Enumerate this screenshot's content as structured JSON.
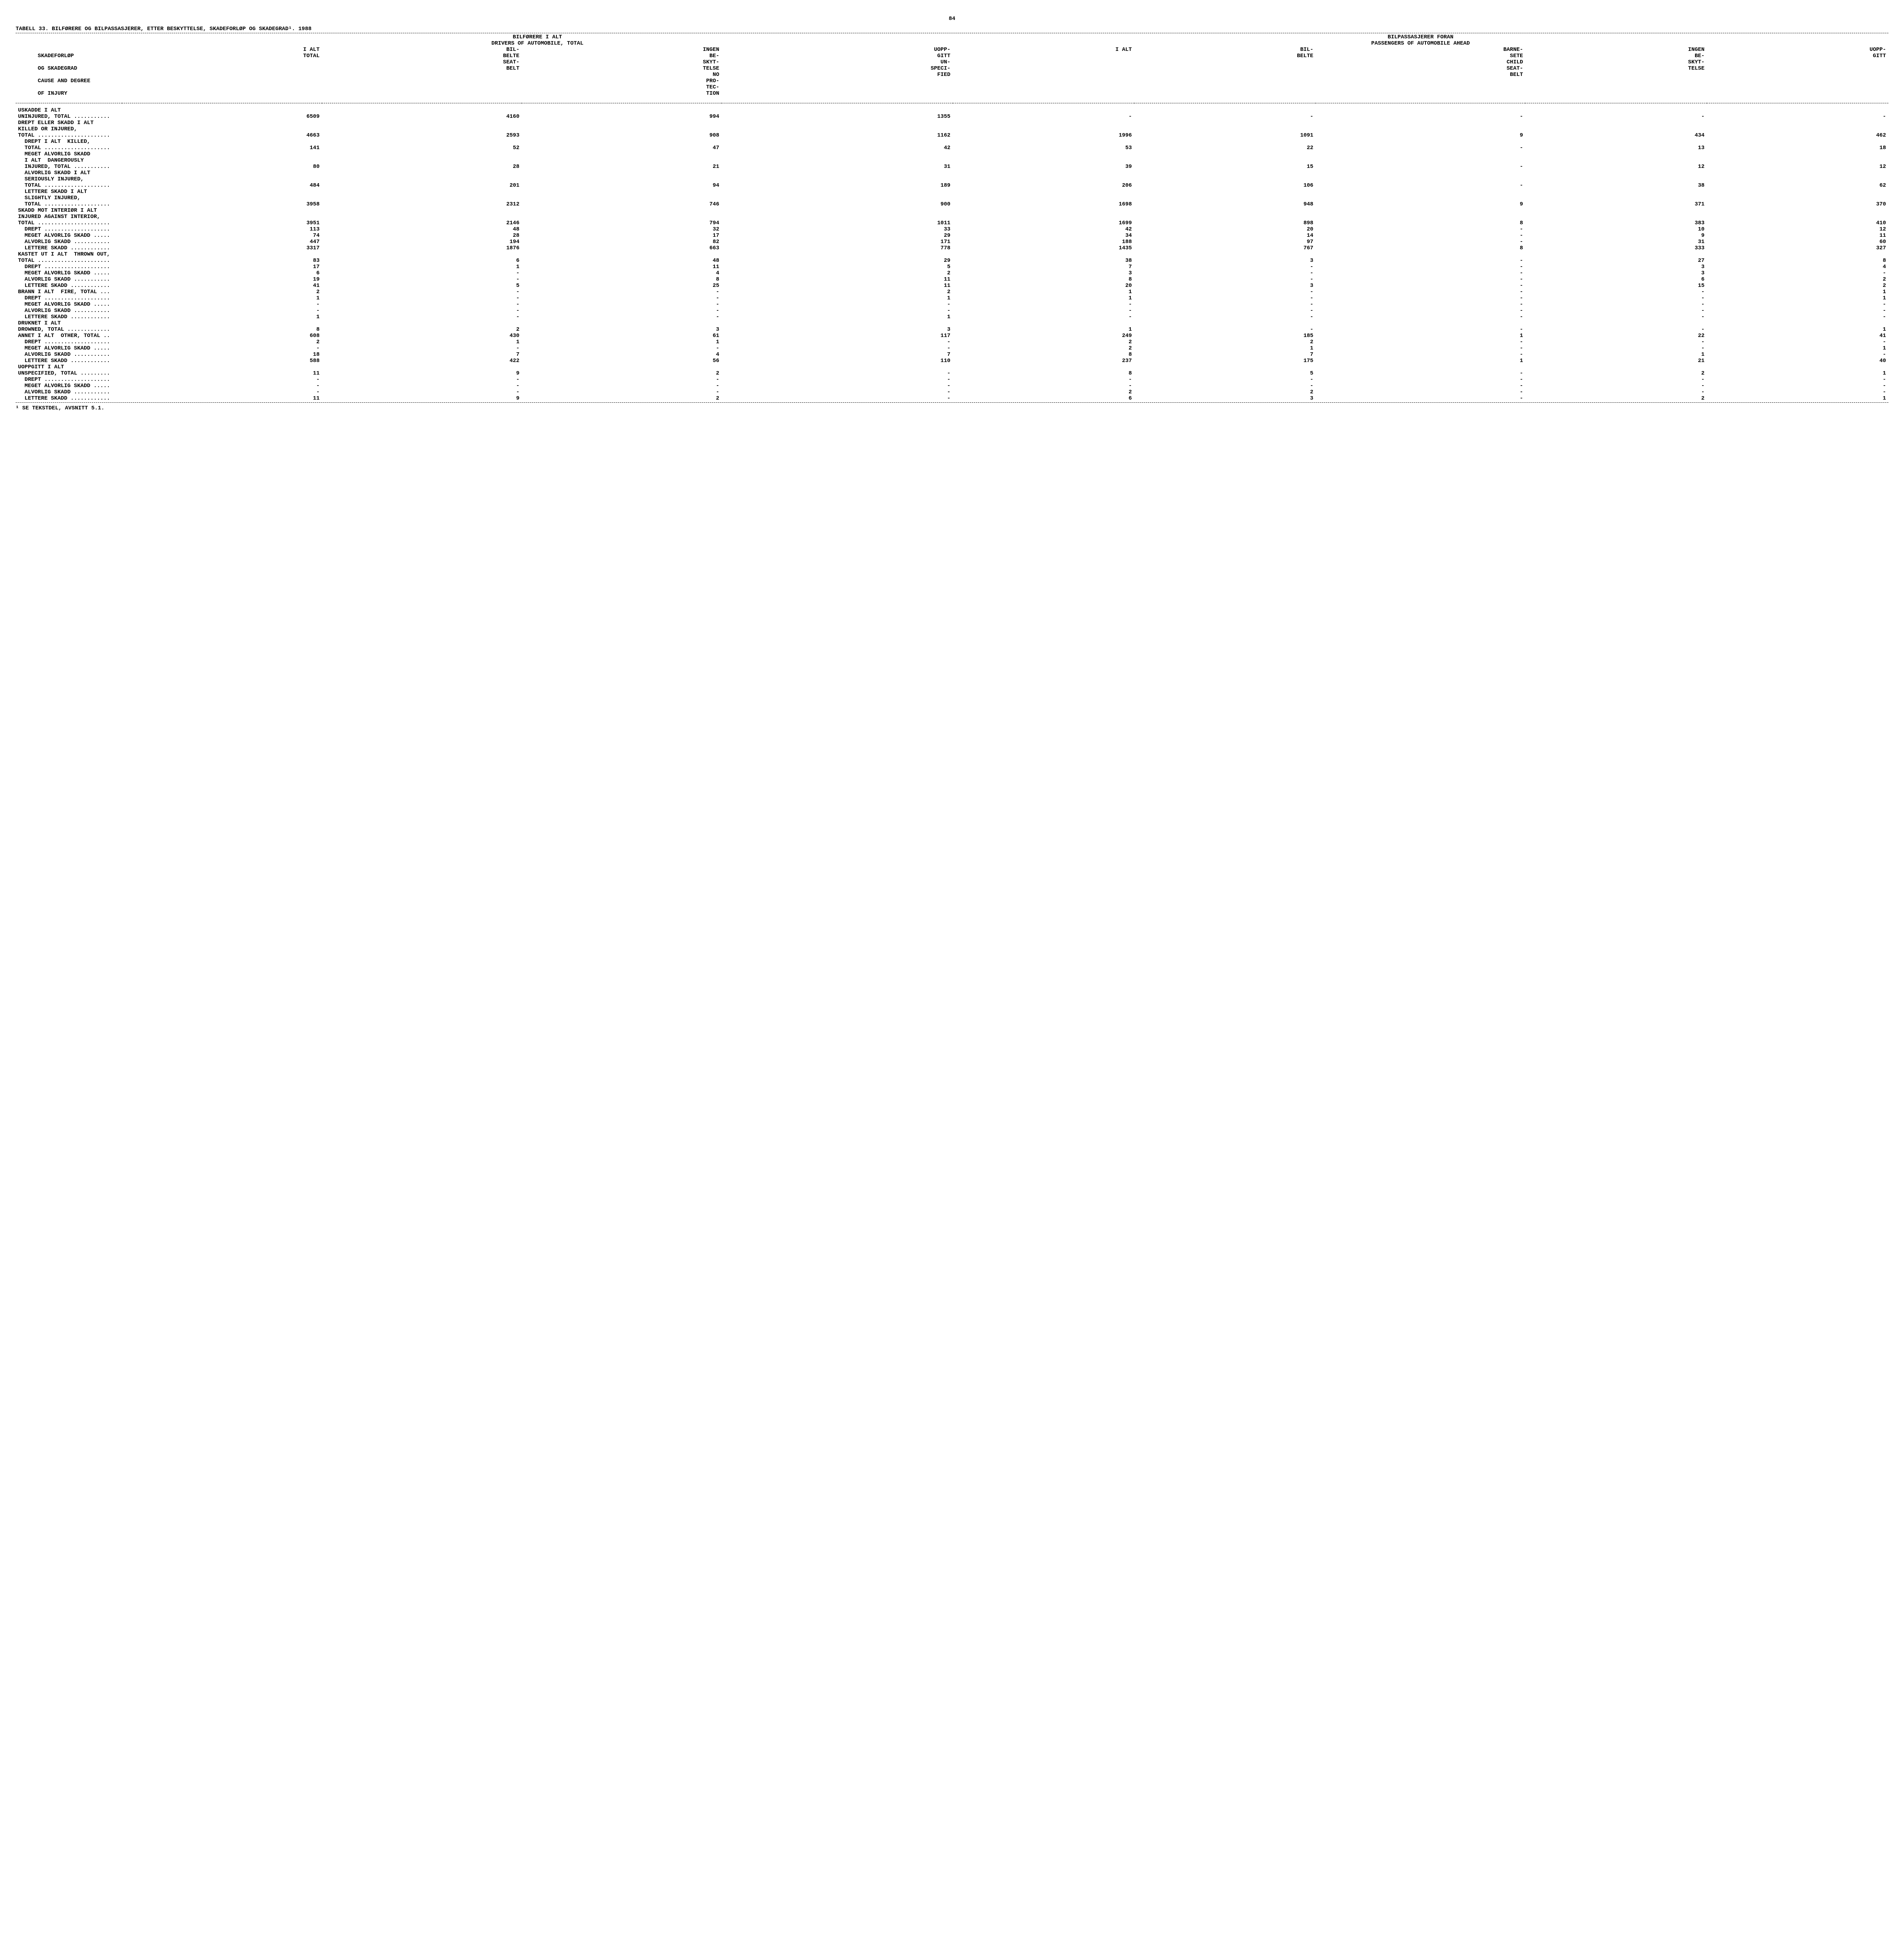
{
  "page_number": "84",
  "table_title": "TABELL 33.  BILFØRERE OG BILPASSASJERER, ETTER BESKYTTELSE, SKADEFORLØP OG SKADEGRAD¹.  1988",
  "footnote": "¹ SE TEKSTDEL, AVSNITT 5.1.",
  "group_headers": {
    "g1_line1": "BILFØRERE I ALT",
    "g1_line2": "DRIVERS OF AUTOMOBILE, TOTAL",
    "g2_line1": "BILPASSASJERER FORAN",
    "g2_line2": "PASSENGERS OF AUTOMOBILE AHEAD"
  },
  "row_header_lines": [
    "SKADEFORLØP",
    "OG SKADEGRAD",
    "CAUSE AND DEGREE",
    "OF INJURY"
  ],
  "col_headers": {
    "c1": "I ALT\nTOTAL",
    "c2": "BIL-\nBELTE\nSEAT-\nBELT",
    "c3": "INGEN\nBE-\nSKYT-\nTELSE\nNO\nPRO-\nTEC-\nTION",
    "c4": "UOPP-\nGITT\nUN-\nSPECI-\nFIED",
    "c5": "I ALT",
    "c6": "BIL-\nBELTE",
    "c7": "BARNE-\nSETE\nCHILD\nSEAT-\nBELT",
    "c8": "INGEN\nBE-\nSKYT-\nTELSE",
    "c9": "UOPP-\nGITT"
  },
  "rows": [
    {
      "label": "USKADDE I ALT",
      "v": [
        "",
        "",
        "",
        "",
        "",
        "",
        "",
        "",
        ""
      ]
    },
    {
      "label": "UNINJURED, TOTAL ...........",
      "v": [
        "6509",
        "4160",
        "994",
        "1355",
        "-",
        "-",
        "-",
        "-",
        "-"
      ]
    },
    {
      "label": "",
      "v": [
        "",
        "",
        "",
        "",
        "",
        "",
        "",
        "",
        ""
      ]
    },
    {
      "label": "DREPT ELLER SKADD I ALT",
      "v": [
        "",
        "",
        "",
        "",
        "",
        "",
        "",
        "",
        ""
      ]
    },
    {
      "label": "KILLED OR INJURED,",
      "v": [
        "",
        "",
        "",
        "",
        "",
        "",
        "",
        "",
        ""
      ]
    },
    {
      "label": "TOTAL ......................",
      "v": [
        "4663",
        "2593",
        "908",
        "1162",
        "1996",
        "1091",
        "9",
        "434",
        "462"
      ]
    },
    {
      "label": "  DREPT I ALT  KILLED,",
      "v": [
        "",
        "",
        "",
        "",
        "",
        "",
        "",
        "",
        ""
      ]
    },
    {
      "label": "  TOTAL ....................",
      "v": [
        "141",
        "52",
        "47",
        "42",
        "53",
        "22",
        "-",
        "13",
        "18"
      ]
    },
    {
      "label": "  MEGET ALVORLIG SKADD",
      "v": [
        "",
        "",
        "",
        "",
        "",
        "",
        "",
        "",
        ""
      ]
    },
    {
      "label": "  I ALT  DANGEROUSLY",
      "v": [
        "",
        "",
        "",
        "",
        "",
        "",
        "",
        "",
        ""
      ]
    },
    {
      "label": "  INJURED, TOTAL ...........",
      "v": [
        "80",
        "28",
        "21",
        "31",
        "39",
        "15",
        "-",
        "12",
        "12"
      ]
    },
    {
      "label": "  ALVORLIG SKADD I ALT",
      "v": [
        "",
        "",
        "",
        "",
        "",
        "",
        "",
        "",
        ""
      ]
    },
    {
      "label": "  SERIOUSLY INJURED,",
      "v": [
        "",
        "",
        "",
        "",
        "",
        "",
        "",
        "",
        ""
      ]
    },
    {
      "label": "  TOTAL ....................",
      "v": [
        "484",
        "201",
        "94",
        "189",
        "206",
        "106",
        "-",
        "38",
        "62"
      ]
    },
    {
      "label": "  LETTERE SKADD I ALT",
      "v": [
        "",
        "",
        "",
        "",
        "",
        "",
        "",
        "",
        ""
      ]
    },
    {
      "label": "  SLIGHTLY INJURED,",
      "v": [
        "",
        "",
        "",
        "",
        "",
        "",
        "",
        "",
        ""
      ]
    },
    {
      "label": "  TOTAL ....................",
      "v": [
        "3958",
        "2312",
        "746",
        "900",
        "1698",
        "948",
        "9",
        "371",
        "370"
      ]
    },
    {
      "label": "",
      "v": [
        "",
        "",
        "",
        "",
        "",
        "",
        "",
        "",
        ""
      ]
    },
    {
      "label": "SKADD MOT INTERIØR I ALT",
      "v": [
        "",
        "",
        "",
        "",
        "",
        "",
        "",
        "",
        ""
      ]
    },
    {
      "label": "INJURED AGAINST INTERIOR,",
      "v": [
        "",
        "",
        "",
        "",
        "",
        "",
        "",
        "",
        ""
      ]
    },
    {
      "label": "TOTAL ......................",
      "v": [
        "3951",
        "2146",
        "794",
        "1011",
        "1699",
        "898",
        "8",
        "383",
        "410"
      ]
    },
    {
      "label": "  DREPT ....................",
      "v": [
        "113",
        "48",
        "32",
        "33",
        "42",
        "20",
        "-",
        "10",
        "12"
      ]
    },
    {
      "label": "  MEGET ALVORLIG SKADD .....",
      "v": [
        "74",
        "28",
        "17",
        "29",
        "34",
        "14",
        "-",
        "9",
        "11"
      ]
    },
    {
      "label": "  ALVORLIG SKADD ...........",
      "v": [
        "447",
        "194",
        "82",
        "171",
        "188",
        "97",
        "-",
        "31",
        "60"
      ]
    },
    {
      "label": "  LETTERE SKADD ............",
      "v": [
        "3317",
        "1876",
        "663",
        "778",
        "1435",
        "767",
        "8",
        "333",
        "327"
      ]
    },
    {
      "label": "",
      "v": [
        "",
        "",
        "",
        "",
        "",
        "",
        "",
        "",
        ""
      ]
    },
    {
      "label": "KASTET UT I ALT  THROWN OUT,",
      "v": [
        "",
        "",
        "",
        "",
        "",
        "",
        "",
        "",
        ""
      ]
    },
    {
      "label": "TOTAL ......................",
      "v": [
        "83",
        "6",
        "48",
        "29",
        "38",
        "3",
        "-",
        "27",
        "8"
      ]
    },
    {
      "label": "  DREPT ....................",
      "v": [
        "17",
        "1",
        "11",
        "5",
        "7",
        "-",
        "-",
        "3",
        "4"
      ]
    },
    {
      "label": "  MEGET ALVORLIG SKADD .....",
      "v": [
        "6",
        "-",
        "4",
        "2",
        "3",
        "-",
        "-",
        "3",
        "-"
      ]
    },
    {
      "label": "  ALVORLIG SKADD ...........",
      "v": [
        "19",
        "-",
        "8",
        "11",
        "8",
        "-",
        "-",
        "6",
        "2"
      ]
    },
    {
      "label": "  LETTERE SKADD ............",
      "v": [
        "41",
        "5",
        "25",
        "11",
        "20",
        "3",
        "-",
        "15",
        "2"
      ]
    },
    {
      "label": "",
      "v": [
        "",
        "",
        "",
        "",
        "",
        "",
        "",
        "",
        ""
      ]
    },
    {
      "label": "BRANN I ALT  FIRE, TOTAL ...",
      "v": [
        "2",
        "-",
        "-",
        "2",
        "1",
        "-",
        "-",
        "-",
        "1"
      ]
    },
    {
      "label": "  DREPT ....................",
      "v": [
        "1",
        "-",
        "-",
        "1",
        "1",
        "-",
        "-",
        "-",
        "1"
      ]
    },
    {
      "label": "  MEGET ALVORLIG SKADD .....",
      "v": [
        "-",
        "-",
        "-",
        "-",
        "-",
        "-",
        "-",
        "-",
        "-"
      ]
    },
    {
      "label": "  ALVORLIG SKADD ...........",
      "v": [
        "-",
        "-",
        "-",
        "-",
        "-",
        "-",
        "-",
        "-",
        "-"
      ]
    },
    {
      "label": "  LETTERE SKADD ............",
      "v": [
        "1",
        "-",
        "-",
        "1",
        "-",
        "-",
        "-",
        "-",
        "-"
      ]
    },
    {
      "label": "",
      "v": [
        "",
        "",
        "",
        "",
        "",
        "",
        "",
        "",
        ""
      ]
    },
    {
      "label": "DRUKNET I ALT",
      "v": [
        "",
        "",
        "",
        "",
        "",
        "",
        "",
        "",
        ""
      ]
    },
    {
      "label": "DROWNED, TOTAL .............",
      "v": [
        "8",
        "2",
        "3",
        "3",
        "1",
        "-",
        "-",
        "-",
        "1"
      ]
    },
    {
      "label": "",
      "v": [
        "",
        "",
        "",
        "",
        "",
        "",
        "",
        "",
        ""
      ]
    },
    {
      "label": "ANNET I ALT  OTHER, TOTAL ..",
      "v": [
        "608",
        "430",
        "61",
        "117",
        "249",
        "185",
        "1",
        "22",
        "41"
      ]
    },
    {
      "label": "  DREPT ....................",
      "v": [
        "2",
        "1",
        "1",
        "-",
        "2",
        "2",
        "-",
        "-",
        "-"
      ]
    },
    {
      "label": "  MEGET ALVORLIG SKADD .....",
      "v": [
        "-",
        "-",
        "-",
        "-",
        "2",
        "1",
        "-",
        "-",
        "1"
      ]
    },
    {
      "label": "  ALVORLIG SKADD ...........",
      "v": [
        "18",
        "7",
        "4",
        "7",
        "8",
        "7",
        "-",
        "1",
        "-"
      ]
    },
    {
      "label": "  LETTERE SKADD ............",
      "v": [
        "588",
        "422",
        "56",
        "110",
        "237",
        "175",
        "1",
        "21",
        "40"
      ]
    },
    {
      "label": "",
      "v": [
        "",
        "",
        "",
        "",
        "",
        "",
        "",
        "",
        ""
      ]
    },
    {
      "label": "UOPPGITT I ALT",
      "v": [
        "",
        "",
        "",
        "",
        "",
        "",
        "",
        "",
        ""
      ]
    },
    {
      "label": "UNSPECIFIED, TOTAL .........",
      "v": [
        "11",
        "9",
        "2",
        "-",
        "8",
        "5",
        "-",
        "2",
        "1"
      ]
    },
    {
      "label": "  DREPT ....................",
      "v": [
        "-",
        "-",
        "-",
        "-",
        "-",
        "-",
        "-",
        "-",
        "-"
      ]
    },
    {
      "label": "  MEGET ALVORLIG SKADD .....",
      "v": [
        "-",
        "-",
        "-",
        "-",
        "-",
        "-",
        "-",
        "-",
        "-"
      ]
    },
    {
      "label": "  ALVORLIG SKADD ...........",
      "v": [
        "-",
        "-",
        "-",
        "-",
        "2",
        "2",
        "-",
        "-",
        "-"
      ]
    },
    {
      "label": "  LETTERE SKADD ............",
      "v": [
        "11",
        "9",
        "2",
        "-",
        "6",
        "3",
        "-",
        "2",
        "1"
      ]
    }
  ]
}
